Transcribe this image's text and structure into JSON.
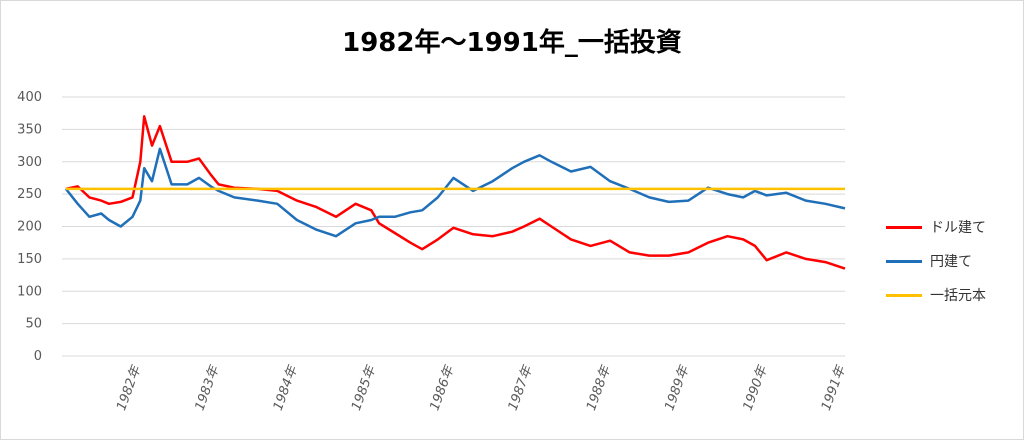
{
  "chart_data": {
    "type": "line",
    "title": "1982年～1991年_一括投資",
    "ylim": [
      0,
      400
    ],
    "yticks": [
      "0",
      "50",
      "100",
      "150",
      "200",
      "250",
      "300",
      "350",
      "400"
    ],
    "x_ticks": [
      "1982年",
      "1983年",
      "1984年",
      "1985年",
      "1986年",
      "1987年",
      "1988年",
      "1989年",
      "1990年",
      "1991年"
    ],
    "grid": true,
    "legend_position": "right",
    "series": [
      {
        "name": "ドル建て",
        "color": "#ff0000",
        "x": [
          1981.05,
          1981.2,
          1981.35,
          1981.5,
          1981.6,
          1981.75,
          1981.9,
          1982.0,
          1982.05,
          1982.15,
          1982.25,
          1982.4,
          1982.6,
          1982.75,
          1982.9,
          1983.0,
          1983.2,
          1983.5,
          1983.75,
          1984.0,
          1984.25,
          1984.5,
          1984.75,
          1984.95,
          1985.05,
          1985.25,
          1985.45,
          1985.6,
          1985.8,
          1986.0,
          1986.25,
          1986.5,
          1986.75,
          1986.9,
          1987.1,
          1987.25,
          1987.5,
          1987.75,
          1988.0,
          1988.25,
          1988.5,
          1988.75,
          1989.0,
          1989.25,
          1989.5,
          1989.7,
          1989.85,
          1990.0,
          1990.25,
          1990.5,
          1990.75,
          1991.0
        ],
        "values": [
          258,
          262,
          245,
          240,
          235,
          238,
          245,
          300,
          370,
          325,
          355,
          300,
          300,
          305,
          280,
          265,
          260,
          258,
          255,
          240,
          230,
          215,
          235,
          225,
          205,
          190,
          175,
          165,
          180,
          198,
          188,
          185,
          192,
          200,
          212,
          200,
          180,
          170,
          178,
          160,
          155,
          155,
          160,
          175,
          185,
          180,
          170,
          148,
          160,
          150,
          145,
          135
        ]
      },
      {
        "name": "円建て",
        "color": "#1f6fb9",
        "x": [
          1981.05,
          1981.2,
          1981.35,
          1981.5,
          1981.6,
          1981.75,
          1981.9,
          1982.0,
          1982.05,
          1982.15,
          1982.25,
          1982.4,
          1982.6,
          1982.75,
          1982.9,
          1983.0,
          1983.2,
          1983.5,
          1983.75,
          1984.0,
          1984.25,
          1984.5,
          1984.75,
          1984.95,
          1985.05,
          1985.25,
          1985.45,
          1985.6,
          1985.8,
          1986.0,
          1986.25,
          1986.5,
          1986.75,
          1986.9,
          1987.1,
          1987.25,
          1987.5,
          1987.75,
          1988.0,
          1988.25,
          1988.5,
          1988.75,
          1989.0,
          1989.25,
          1989.5,
          1989.7,
          1989.85,
          1990.0,
          1990.25,
          1990.5,
          1990.75,
          1991.0
        ],
        "values": [
          258,
          235,
          215,
          220,
          210,
          200,
          215,
          240,
          290,
          270,
          320,
          265,
          265,
          275,
          262,
          255,
          245,
          240,
          235,
          210,
          195,
          185,
          205,
          210,
          215,
          215,
          222,
          225,
          245,
          275,
          255,
          270,
          290,
          300,
          310,
          300,
          285,
          292,
          270,
          258,
          245,
          238,
          240,
          260,
          250,
          245,
          255,
          248,
          252,
          240,
          235,
          228
        ]
      },
      {
        "name": "一括元本",
        "color": "#ffc000",
        "x": [
          1981.05,
          1991.0
        ],
        "values": [
          258,
          258
        ]
      }
    ]
  }
}
